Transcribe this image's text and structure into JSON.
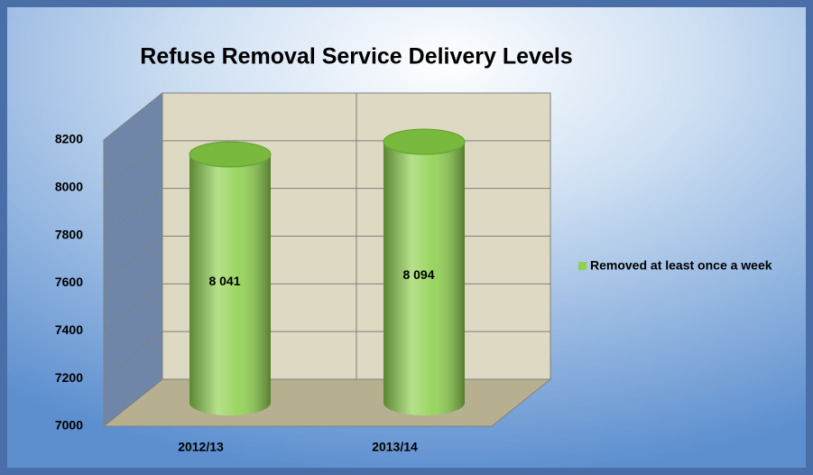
{
  "chart_data": {
    "type": "bar3d",
    "title": "Refuse Removal Service Delivery Levels",
    "categories": [
      "2012/13",
      "2013/14"
    ],
    "series": [
      {
        "name": "Removed at least once a week",
        "color": "#8fd14f",
        "values": [
          8041,
          8094
        ],
        "value_labels": [
          "8 041",
          "8 094"
        ]
      }
    ],
    "ylim": [
      7000,
      8200
    ],
    "yticks": [
      7000,
      7200,
      7400,
      7600,
      7800,
      8000,
      8200
    ],
    "grid": true,
    "legend": "right"
  }
}
